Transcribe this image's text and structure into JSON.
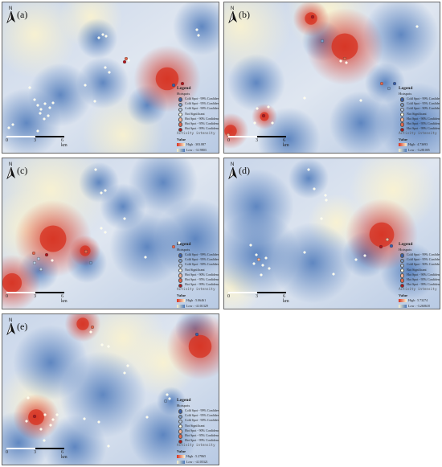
{
  "panels": [
    {
      "label": "(a)",
      "scale": {
        "start": "0",
        "mid": "3",
        "end": "6 km"
      },
      "north": "N",
      "legend": {
        "title": "Legend",
        "hotspots_title": "Hotspots",
        "items": [
          "Cold Spot - 99% Confidence",
          "Cold Spot - 95% Confidence",
          "Cold Spot - 90% Confidence",
          "Not Significant",
          "Hot Spot - 90% Confidence",
          "Hot Spot - 95% Confidence",
          "Hot Spot - 99% Confidence"
        ],
        "activity_title": "Activity intensity",
        "value_title": "Value",
        "high": "High : 303.887",
        "low": "Low : -3.19803"
      }
    },
    {
      "label": "(b)",
      "scale": {
        "start": "0",
        "mid": "3",
        "end": "6 km"
      },
      "north": "N",
      "legend": {
        "title": "Legend",
        "hotspots_title": "Hotspots",
        "items": [
          "Cold Spot - 99% Confidence",
          "Cold Spot - 95% Confidence",
          "Cold Spot - 90% Confidence",
          "Not Significant",
          "Hot Spot - 90% Confidence",
          "Hot Spot - 95% Confidence",
          "Hot Spot - 99% Confidence"
        ],
        "activity_title": "Activity intensity",
        "value_title": "Value",
        "high": "High : 4.73693",
        "low": "Low : -3.281005"
      }
    },
    {
      "label": "(c)",
      "scale": {
        "start": "0",
        "mid": "3",
        "end": "6 km"
      },
      "north": "N",
      "legend": {
        "title": "Legend",
        "hotspots_title": "Hotspots",
        "items": [
          "Cold Spot - 99% Confidence",
          "Cold Spot - 95% Confidence",
          "Cold Spot - 90% Confidence",
          "Not Significant",
          "Hot Spot - 90% Confidence",
          "Hot Spot - 95% Confidence",
          "Hot Spot - 99% Confidence"
        ],
        "activity_title": "Activity intensity",
        "value_title": "Value",
        "high": "High : 5.06461",
        "low": "Low : -4.101329"
      }
    },
    {
      "label": "(d)",
      "scale": {
        "start": "0",
        "mid": "3",
        "end": "6 km"
      },
      "north": "N",
      "legend": {
        "title": "Legend",
        "hotspots_title": "Hotspots",
        "items": [
          "Cold Spot - 99% Confidence",
          "Cold Spot - 95% Confidence",
          "Cold Spot - 90% Confidence",
          "Not Significant",
          "Hot Spot - 90% Confidence",
          "Hot Spot - 95% Confidence",
          "Hot Spot - 99% Confidence"
        ],
        "activity_title": "Activity intensity",
        "value_title": "Value",
        "high": "High : 5.73274",
        "low": "Low : -3.260618"
      }
    },
    {
      "label": "(e)",
      "scale": {
        "start": "0",
        "mid": "3",
        "end": "6 km"
      },
      "north": "N",
      "legend": {
        "title": "Legend",
        "hotspots_title": "Hotspots",
        "items": [
          "Cold Spot - 99% Confidence",
          "Cold Spot - 95% Confidence",
          "Cold Spot - 90% Confidence",
          "Not Significant",
          "Hot Spot - 90% Confidence",
          "Hot Spot - 95% Confidence",
          "Hot Spot - 99% Confidence"
        ],
        "activity_title": "Activity intensity",
        "value_title": "Value",
        "high": "High : 5.27865",
        "low": "Low : -4.105321"
      }
    }
  ],
  "colors": {
    "high": "#d7301f",
    "mid": "#fbf3cf",
    "low": "#4a77b9",
    "cold99": "#3a5fa8",
    "cold95": "#7b9cc9",
    "cold90": "#b9cbe3",
    "not_sig": "#fffde8",
    "hot90": "#f4b49a",
    "hot95": "#e2674d",
    "hot99": "#b0151b"
  }
}
